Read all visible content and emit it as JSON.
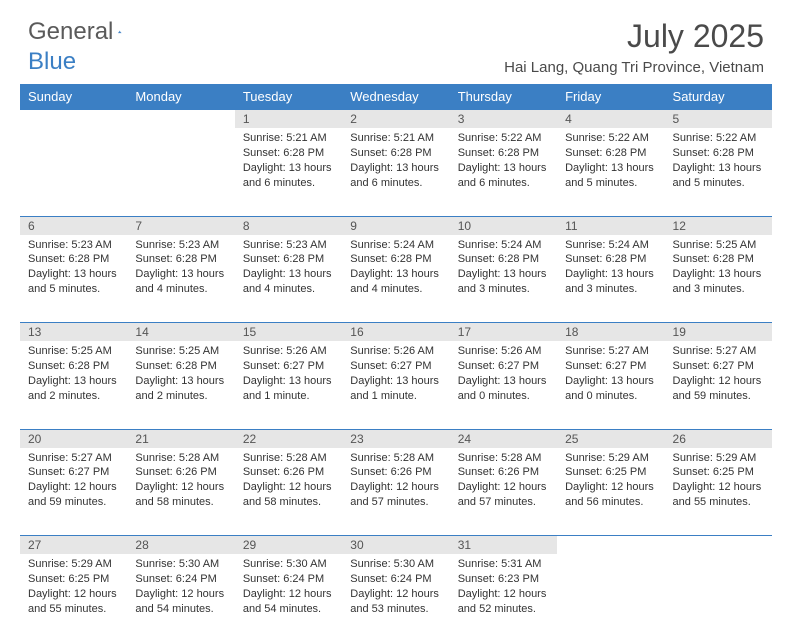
{
  "brand": {
    "word1": "General",
    "word2": "Blue"
  },
  "title": "July 2025",
  "location": "Hai Lang, Quang Tri Province, Vietnam",
  "colors": {
    "header_bg": "#3b7fc4",
    "header_text": "#ffffff",
    "daynum_bg": "#e6e6e6",
    "border": "#3b7fc4",
    "text": "#333333",
    "background": "#ffffff"
  },
  "day_headers": [
    "Sunday",
    "Monday",
    "Tuesday",
    "Wednesday",
    "Thursday",
    "Friday",
    "Saturday"
  ],
  "weeks": [
    [
      null,
      null,
      {
        "n": "1",
        "sr": "Sunrise: 5:21 AM",
        "ss": "Sunset: 6:28 PM",
        "dl": "Daylight: 13 hours and 6 minutes."
      },
      {
        "n": "2",
        "sr": "Sunrise: 5:21 AM",
        "ss": "Sunset: 6:28 PM",
        "dl": "Daylight: 13 hours and 6 minutes."
      },
      {
        "n": "3",
        "sr": "Sunrise: 5:22 AM",
        "ss": "Sunset: 6:28 PM",
        "dl": "Daylight: 13 hours and 6 minutes."
      },
      {
        "n": "4",
        "sr": "Sunrise: 5:22 AM",
        "ss": "Sunset: 6:28 PM",
        "dl": "Daylight: 13 hours and 5 minutes."
      },
      {
        "n": "5",
        "sr": "Sunrise: 5:22 AM",
        "ss": "Sunset: 6:28 PM",
        "dl": "Daylight: 13 hours and 5 minutes."
      }
    ],
    [
      {
        "n": "6",
        "sr": "Sunrise: 5:23 AM",
        "ss": "Sunset: 6:28 PM",
        "dl": "Daylight: 13 hours and 5 minutes."
      },
      {
        "n": "7",
        "sr": "Sunrise: 5:23 AM",
        "ss": "Sunset: 6:28 PM",
        "dl": "Daylight: 13 hours and 4 minutes."
      },
      {
        "n": "8",
        "sr": "Sunrise: 5:23 AM",
        "ss": "Sunset: 6:28 PM",
        "dl": "Daylight: 13 hours and 4 minutes."
      },
      {
        "n": "9",
        "sr": "Sunrise: 5:24 AM",
        "ss": "Sunset: 6:28 PM",
        "dl": "Daylight: 13 hours and 4 minutes."
      },
      {
        "n": "10",
        "sr": "Sunrise: 5:24 AM",
        "ss": "Sunset: 6:28 PM",
        "dl": "Daylight: 13 hours and 3 minutes."
      },
      {
        "n": "11",
        "sr": "Sunrise: 5:24 AM",
        "ss": "Sunset: 6:28 PM",
        "dl": "Daylight: 13 hours and 3 minutes."
      },
      {
        "n": "12",
        "sr": "Sunrise: 5:25 AM",
        "ss": "Sunset: 6:28 PM",
        "dl": "Daylight: 13 hours and 3 minutes."
      }
    ],
    [
      {
        "n": "13",
        "sr": "Sunrise: 5:25 AM",
        "ss": "Sunset: 6:28 PM",
        "dl": "Daylight: 13 hours and 2 minutes."
      },
      {
        "n": "14",
        "sr": "Sunrise: 5:25 AM",
        "ss": "Sunset: 6:28 PM",
        "dl": "Daylight: 13 hours and 2 minutes."
      },
      {
        "n": "15",
        "sr": "Sunrise: 5:26 AM",
        "ss": "Sunset: 6:27 PM",
        "dl": "Daylight: 13 hours and 1 minute."
      },
      {
        "n": "16",
        "sr": "Sunrise: 5:26 AM",
        "ss": "Sunset: 6:27 PM",
        "dl": "Daylight: 13 hours and 1 minute."
      },
      {
        "n": "17",
        "sr": "Sunrise: 5:26 AM",
        "ss": "Sunset: 6:27 PM",
        "dl": "Daylight: 13 hours and 0 minutes."
      },
      {
        "n": "18",
        "sr": "Sunrise: 5:27 AM",
        "ss": "Sunset: 6:27 PM",
        "dl": "Daylight: 13 hours and 0 minutes."
      },
      {
        "n": "19",
        "sr": "Sunrise: 5:27 AM",
        "ss": "Sunset: 6:27 PM",
        "dl": "Daylight: 12 hours and 59 minutes."
      }
    ],
    [
      {
        "n": "20",
        "sr": "Sunrise: 5:27 AM",
        "ss": "Sunset: 6:27 PM",
        "dl": "Daylight: 12 hours and 59 minutes."
      },
      {
        "n": "21",
        "sr": "Sunrise: 5:28 AM",
        "ss": "Sunset: 6:26 PM",
        "dl": "Daylight: 12 hours and 58 minutes."
      },
      {
        "n": "22",
        "sr": "Sunrise: 5:28 AM",
        "ss": "Sunset: 6:26 PM",
        "dl": "Daylight: 12 hours and 58 minutes."
      },
      {
        "n": "23",
        "sr": "Sunrise: 5:28 AM",
        "ss": "Sunset: 6:26 PM",
        "dl": "Daylight: 12 hours and 57 minutes."
      },
      {
        "n": "24",
        "sr": "Sunrise: 5:28 AM",
        "ss": "Sunset: 6:26 PM",
        "dl": "Daylight: 12 hours and 57 minutes."
      },
      {
        "n": "25",
        "sr": "Sunrise: 5:29 AM",
        "ss": "Sunset: 6:25 PM",
        "dl": "Daylight: 12 hours and 56 minutes."
      },
      {
        "n": "26",
        "sr": "Sunrise: 5:29 AM",
        "ss": "Sunset: 6:25 PM",
        "dl": "Daylight: 12 hours and 55 minutes."
      }
    ],
    [
      {
        "n": "27",
        "sr": "Sunrise: 5:29 AM",
        "ss": "Sunset: 6:25 PM",
        "dl": "Daylight: 12 hours and 55 minutes."
      },
      {
        "n": "28",
        "sr": "Sunrise: 5:30 AM",
        "ss": "Sunset: 6:24 PM",
        "dl": "Daylight: 12 hours and 54 minutes."
      },
      {
        "n": "29",
        "sr": "Sunrise: 5:30 AM",
        "ss": "Sunset: 6:24 PM",
        "dl": "Daylight: 12 hours and 54 minutes."
      },
      {
        "n": "30",
        "sr": "Sunrise: 5:30 AM",
        "ss": "Sunset: 6:24 PM",
        "dl": "Daylight: 12 hours and 53 minutes."
      },
      {
        "n": "31",
        "sr": "Sunrise: 5:31 AM",
        "ss": "Sunset: 6:23 PM",
        "dl": "Daylight: 12 hours and 52 minutes."
      },
      null,
      null
    ]
  ]
}
